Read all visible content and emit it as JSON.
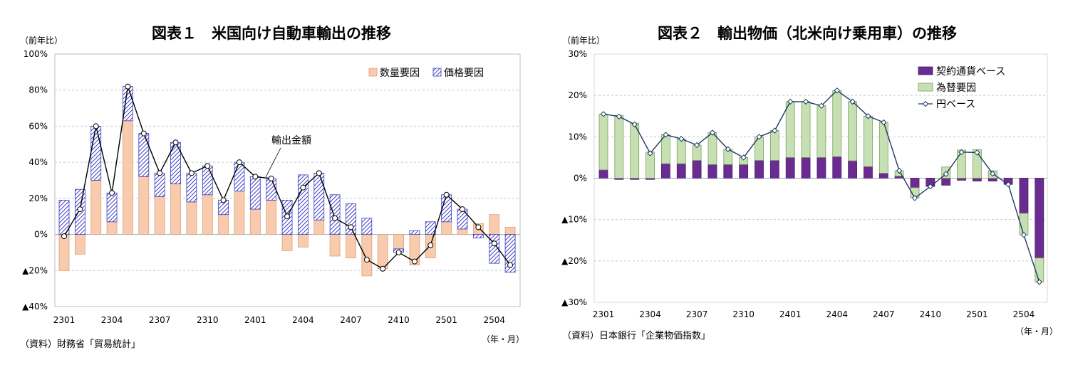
{
  "chart_data": [
    {
      "type": "bar",
      "stacked": true,
      "title": "図表１　米国向け自動車輸出の推移",
      "ylabel": "（前年比）",
      "xlabel": "（年・月）",
      "source": "（資料）財務省「貿易統計」",
      "ylim": [
        -40,
        100
      ],
      "y_ticks": [
        100,
        80,
        60,
        40,
        20,
        0,
        -20,
        -40
      ],
      "y_tick_labels": [
        "100%",
        "80%",
        "60%",
        "40%",
        "20%",
        "0%",
        "▲20%",
        "▲40%"
      ],
      "x_tick_labels": [
        "2301",
        "2304",
        "2307",
        "2310",
        "2401",
        "2404",
        "2407",
        "2410",
        "2501",
        "2504"
      ],
      "categories": [
        "2301",
        "2302",
        "2303",
        "2304",
        "2305",
        "2306",
        "2307",
        "2308",
        "2309",
        "2310",
        "2311",
        "2312",
        "2401",
        "2402",
        "2403",
        "2404",
        "2405",
        "2406",
        "2407",
        "2408",
        "2409",
        "2410",
        "2411",
        "2412",
        "2501",
        "2502",
        "2503",
        "2504",
        "2505"
      ],
      "grid": true,
      "legend_position": "top-right",
      "series": [
        {
          "name": "数量要因",
          "type": "bar",
          "color": "#f8cbad",
          "values": [
            -20,
            -11,
            30,
            7,
            63,
            32,
            21,
            28,
            18,
            22,
            11,
            24,
            14,
            19,
            -9,
            -7,
            8,
            -12,
            -13,
            -23,
            -19,
            -8,
            -17,
            -13,
            7,
            3,
            6,
            11,
            4
          ]
        },
        {
          "name": "価格要因",
          "type": "bar",
          "color": "#3b3bc4",
          "pattern": "diagonal-hatch",
          "values": [
            19,
            25,
            30,
            16,
            19,
            24,
            13,
            23,
            16,
            16,
            8,
            16,
            18,
            12,
            19,
            33,
            26,
            22,
            17,
            9,
            0,
            -2,
            2,
            7,
            15,
            11,
            -2,
            -16,
            -21
          ]
        },
        {
          "name": "輸出金額",
          "type": "line",
          "color": "#000000",
          "values": [
            -1,
            14,
            60,
            23,
            82,
            56,
            34,
            51,
            34,
            38,
            19,
            40,
            32,
            31,
            10,
            26,
            34,
            9,
            4,
            -14,
            -19,
            -10,
            -15,
            -6,
            22,
            14,
            4,
            -5,
            -17
          ]
        }
      ]
    },
    {
      "type": "bar",
      "stacked": true,
      "title": "図表２　輸出物価（北米向け乗用車）の推移",
      "ylabel": "（前年比）",
      "xlabel": "（年・月）",
      "source": "（資料）日本銀行「企業物価指数」",
      "ylim": [
        -30,
        30
      ],
      "y_ticks": [
        30,
        20,
        10,
        0,
        -10,
        -20,
        -30
      ],
      "y_tick_labels": [
        "30%",
        "20%",
        "10%",
        "0%",
        "▲10%",
        "▲20%",
        "▲30%"
      ],
      "x_tick_labels": [
        "2301",
        "2304",
        "2307",
        "2310",
        "2401",
        "2404",
        "2407",
        "2410",
        "2501",
        "2504"
      ],
      "categories": [
        "2301",
        "2302",
        "2303",
        "2304",
        "2305",
        "2306",
        "2307",
        "2308",
        "2309",
        "2310",
        "2311",
        "2312",
        "2401",
        "2402",
        "2403",
        "2404",
        "2405",
        "2406",
        "2407",
        "2408",
        "2409",
        "2410",
        "2411",
        "2412",
        "2501",
        "2502",
        "2503",
        "2504",
        "2505"
      ],
      "grid": true,
      "legend_position": "top-right",
      "series": [
        {
          "name": "契約通貨ベース",
          "type": "bar",
          "color": "#6a2c91",
          "values": [
            2.0,
            -0.3,
            -0.3,
            -0.3,
            3.5,
            3.5,
            4.3,
            3.3,
            3.3,
            3.3,
            4.3,
            4.3,
            5.0,
            5.0,
            5.0,
            5.2,
            4.2,
            2.8,
            1.2,
            0.5,
            -2.3,
            -2.0,
            -1.7,
            -0.5,
            -0.7,
            -0.7,
            -1.5,
            -8.5,
            -19.3
          ]
        },
        {
          "name": "為替要因",
          "type": "bar",
          "color": "#c6e0b4",
          "values": [
            13.5,
            15.2,
            13.3,
            6.3,
            7.0,
            6.0,
            3.7,
            7.7,
            3.7,
            1.7,
            5.7,
            7.2,
            13.5,
            13.5,
            12.5,
            16.0,
            14.3,
            12.2,
            12.3,
            1.3,
            -2.5,
            0,
            2.7,
            6.8,
            6.9,
            1.8,
            0,
            -5.2,
            -5.8
          ]
        },
        {
          "name": "円ベース",
          "type": "line",
          "color": "#1f3864",
          "values": [
            15.5,
            14.9,
            13.0,
            6.0,
            10.5,
            9.5,
            8.0,
            11.0,
            7.0,
            5.0,
            10.0,
            11.5,
            18.5,
            18.5,
            17.5,
            21.2,
            18.5,
            15.0,
            13.5,
            1.8,
            -4.8,
            -2.0,
            1.0,
            6.3,
            6.2,
            1.1,
            -1.5,
            -13.7,
            -25.1
          ]
        }
      ]
    }
  ]
}
